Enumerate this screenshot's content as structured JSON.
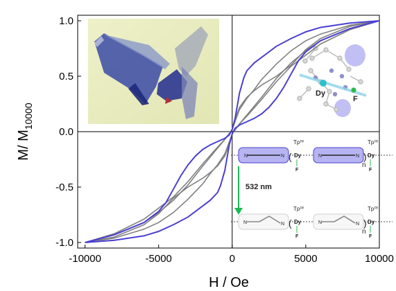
{
  "chart_data": {
    "type": "line",
    "title": "",
    "xlabel": "H / Oe",
    "ylabel_main": "M/ M",
    "ylabel_sub": "10000",
    "xlim": [
      -10500,
      10000
    ],
    "ylim": [
      -1.05,
      1.05
    ],
    "x_ticks": [
      -10000,
      -5000,
      0,
      5000,
      10000
    ],
    "x_tick_labels": [
      "-10000",
      "-5000",
      "0",
      "5000",
      "10000"
    ],
    "y_ticks": [
      -1.0,
      -0.5,
      0.0,
      0.5,
      1.0
    ],
    "y_tick_labels": [
      "-1.0",
      "-0.5",
      "0.0",
      "0.5",
      "1.0"
    ],
    "grid": false,
    "zero_axes": true,
    "series": [
      {
        "color": "#4a3fd1",
        "width": 2.0,
        "x": [
          -10000,
          -8000,
          -6000,
          -5000,
          -4500,
          -4000,
          -3500,
          -3000,
          -2500,
          -2000,
          -1500,
          -1000,
          -500,
          -200,
          0,
          200,
          500,
          800,
          1000,
          1500,
          2000,
          3000,
          4000,
          5000,
          6000,
          8000,
          10000
        ],
        "y_upper": [
          -1.0,
          -0.93,
          -0.82,
          -0.72,
          -0.64,
          -0.52,
          -0.4,
          -0.3,
          -0.22,
          -0.16,
          -0.12,
          -0.09,
          -0.06,
          -0.03,
          0.02,
          0.12,
          0.35,
          0.49,
          0.55,
          0.62,
          0.67,
          0.77,
          0.84,
          0.9,
          0.94,
          0.98,
          1.0
        ]
      },
      {
        "color": "#808080",
        "width": 1.6,
        "x": [
          -10000,
          -8000,
          -6000,
          -5000,
          -4000,
          -3000,
          -2000,
          -1000,
          -500,
          0,
          500,
          1000,
          1500,
          2000,
          3000,
          4000,
          5000,
          6000,
          8000,
          10000
        ],
        "y_upper": [
          -1.0,
          -0.93,
          -0.82,
          -0.73,
          -0.62,
          -0.48,
          -0.31,
          -0.15,
          -0.07,
          0.02,
          0.2,
          0.3,
          0.38,
          0.47,
          0.61,
          0.73,
          0.82,
          0.88,
          0.96,
          1.0
        ]
      },
      {
        "color": "#808080",
        "width": 1.6,
        "x": [
          -10000,
          -8000,
          -6000,
          -4000,
          -3000,
          -2000,
          -1000,
          -500,
          0,
          300,
          500,
          1000,
          1500,
          2000,
          3000,
          4000,
          5000,
          6000,
          8000,
          10000
        ],
        "y_upper": [
          -1.0,
          -0.92,
          -0.79,
          -0.59,
          -0.45,
          -0.29,
          -0.14,
          -0.07,
          0.02,
          0.15,
          0.22,
          0.31,
          0.37,
          0.42,
          0.5,
          0.6,
          0.74,
          0.84,
          0.95,
          1.0
        ]
      }
    ]
  },
  "scheme": {
    "ligand_label": "Tp",
    "ligand_sup": "py",
    "metal_label": "Dy",
    "halide_label": "F",
    "bridge_left_label": "N",
    "bridge_right_label": "N",
    "repeat_label": "n",
    "light_label": "532 nm",
    "light_color": "#1db954",
    "pre_color": "#b7b4f2",
    "pre_border": "#4a3fd1",
    "metal_color": "#2fb84a",
    "molecule_f_label": "F",
    "molecule_dy_label": "Dy"
  }
}
